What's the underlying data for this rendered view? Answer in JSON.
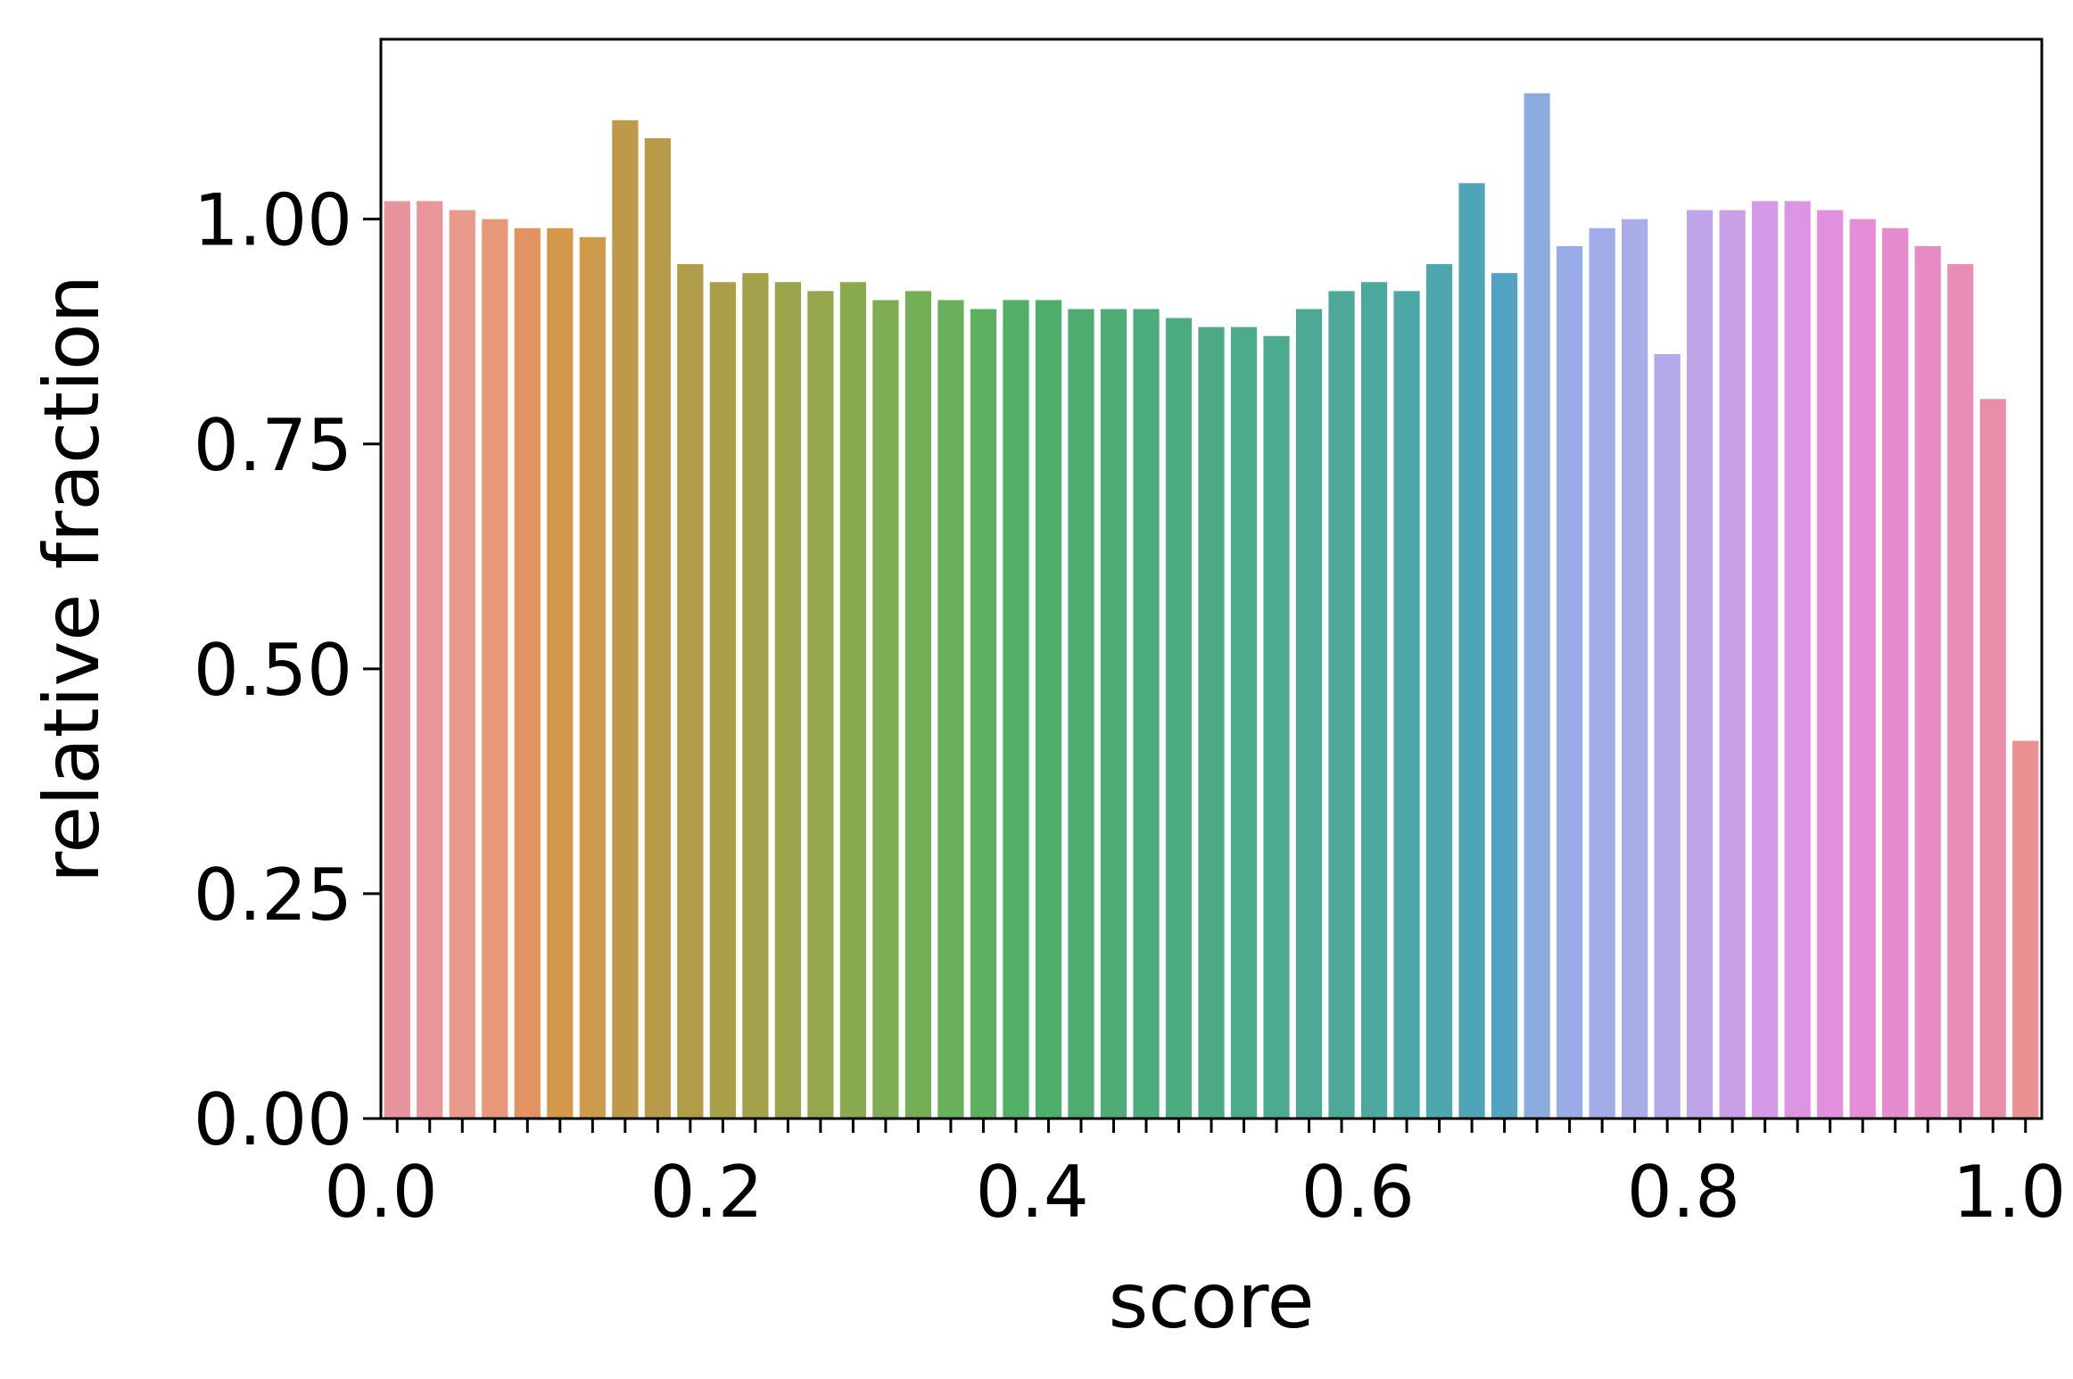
{
  "chart_data": {
    "type": "bar",
    "title": "",
    "xlabel": "score",
    "ylabel": "relative fraction",
    "xlim": [
      0.0,
      1.02
    ],
    "ylim": [
      0.0,
      1.2
    ],
    "xticks": [
      "0.0",
      "0.2",
      "0.4",
      "0.6",
      "0.8",
      "1.0"
    ],
    "yticks": [
      "0.00",
      "0.25",
      "0.50",
      "0.75",
      "1.00"
    ],
    "grid": false,
    "legend": "none",
    "values": [
      1.02,
      1.02,
      1.01,
      1.0,
      0.99,
      0.99,
      0.98,
      1.11,
      1.09,
      0.95,
      0.93,
      0.94,
      0.93,
      0.92,
      0.93,
      0.91,
      0.92,
      0.91,
      0.9,
      0.91,
      0.91,
      0.9,
      0.9,
      0.9,
      0.89,
      0.88,
      0.88,
      0.87,
      0.9,
      0.92,
      0.93,
      0.92,
      0.95,
      1.04,
      0.94,
      1.14,
      0.97,
      0.99,
      1.0,
      0.85,
      1.01,
      1.01,
      1.02,
      1.02,
      1.01,
      1.0,
      0.99,
      0.97,
      0.95,
      0.8,
      0.42
    ],
    "colors": [
      "#e8949c",
      "#e8969a",
      "#e89a8c",
      "#e69878",
      "#e09462",
      "#d6994c",
      "#cd9b4b",
      "#c0984a",
      "#b79a4a",
      "#b19c49",
      "#aa9f49",
      "#a3a14a",
      "#9ca44b",
      "#94a74d",
      "#8aaa4f",
      "#7fad52",
      "#74ae55",
      "#68b059",
      "#5cb05f",
      "#52af66",
      "#4eae6b",
      "#4dad70",
      "#4dad76",
      "#4cac7b",
      "#4cac80",
      "#4cab85",
      "#4cab8a",
      "#4caa8f",
      "#4ca994",
      "#4ca99a",
      "#4da8a0",
      "#4da7a7",
      "#4ea6ae",
      "#4fa5b7",
      "#51a3c1",
      "#8cace0",
      "#98ade8",
      "#a1ade8",
      "#a8ace9",
      "#b4a8ea",
      "#c0a4ea",
      "#c9a0e8",
      "#d39be7",
      "#dc95e4",
      "#e28fe0",
      "#e58cd7",
      "#e68bcd",
      "#e78cc3",
      "#e88db6",
      "#e88ea9",
      "#e89092"
    ]
  }
}
